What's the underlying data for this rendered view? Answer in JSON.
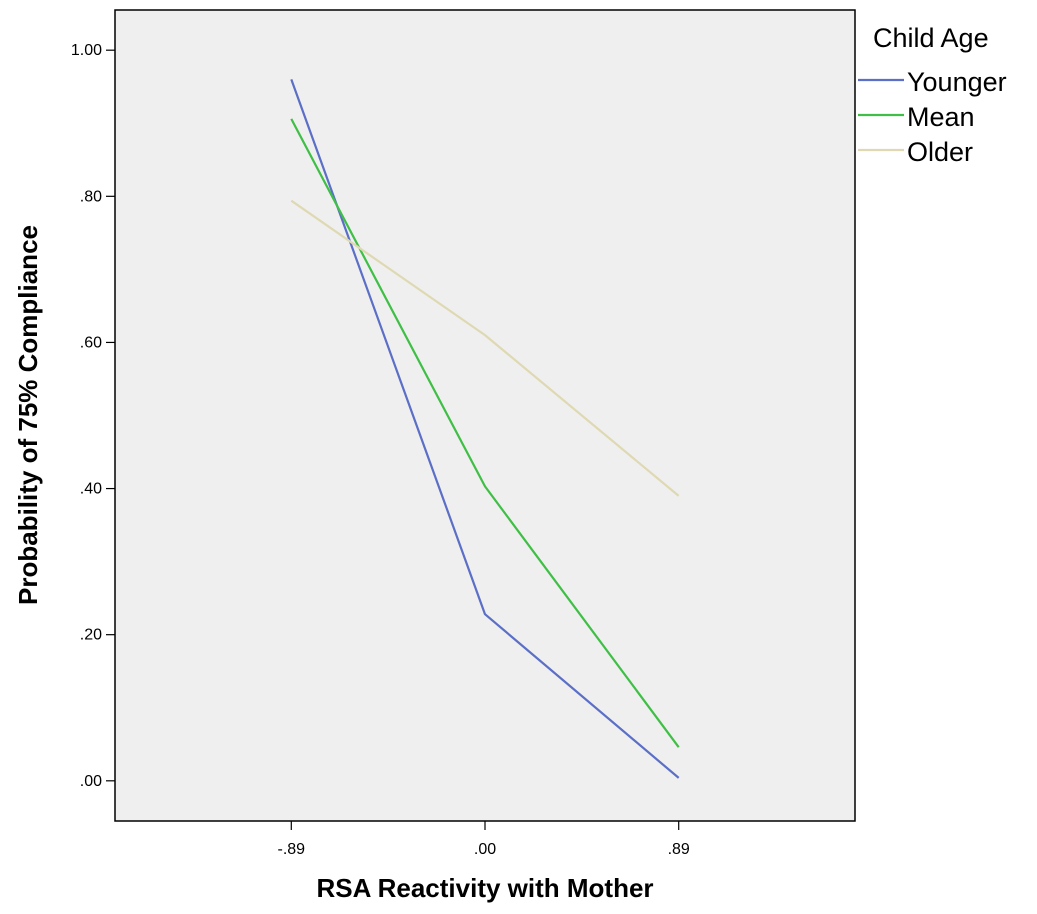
{
  "chart_data": {
    "type": "line",
    "title": "",
    "xlabel": "RSA Reactivity with Mother",
    "ylabel": "Probability of 75% Compliance",
    "categories": [
      "-.89",
      ".00",
      ".89"
    ],
    "x": [
      -0.89,
      0.0,
      0.89
    ],
    "xlim": [
      -1.7,
      1.7
    ],
    "ylim": [
      -0.055,
      1.055
    ],
    "y_ticks": [
      0.0,
      0.2,
      0.4,
      0.6,
      0.8,
      1.0
    ],
    "y_tick_labels": [
      ".00",
      ".20",
      ".40",
      ".60",
      ".80",
      "1.00"
    ],
    "grid": false,
    "legend": {
      "title": "Child Age",
      "placement": "right"
    },
    "series": [
      {
        "name": "Younger",
        "color": "#5b6fc7",
        "values": [
          0.96,
          0.228,
          0.004
        ]
      },
      {
        "name": "Mean",
        "color": "#3fbf45",
        "values": [
          0.906,
          0.403,
          0.046
        ]
      },
      {
        "name": "Older",
        "color": "#ded9b2",
        "values": [
          0.794,
          0.61,
          0.39
        ]
      }
    ],
    "plot_background": "#efefef"
  }
}
